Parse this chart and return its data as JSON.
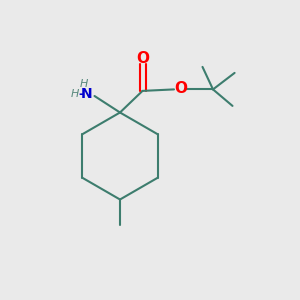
{
  "background_color": "#EAEAEA",
  "bond_color": "#3d7d6e",
  "bond_width": 1.5,
  "atom_colors": {
    "N": "#0000CD",
    "O": "#FF0000",
    "C": "#3d7d6e",
    "H": "#5a8a7e"
  },
  "figsize": [
    3.0,
    3.0
  ],
  "dpi": 100,
  "xlim": [
    0,
    10
  ],
  "ylim": [
    0,
    10
  ]
}
